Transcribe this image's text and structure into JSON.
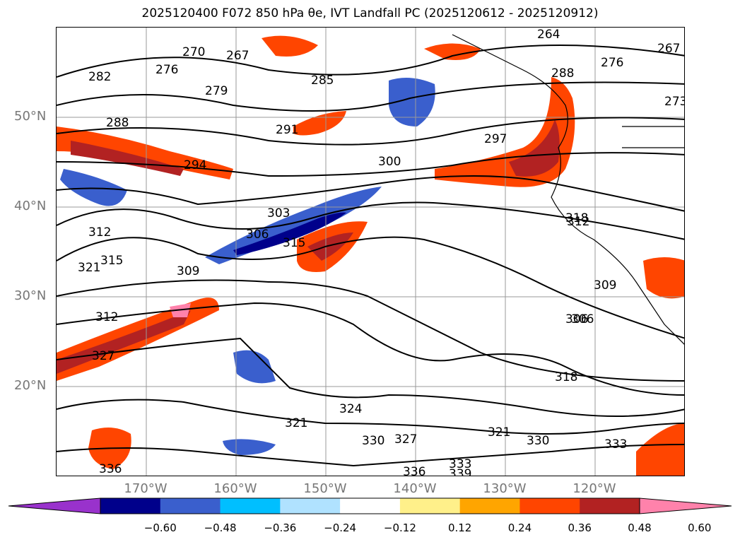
{
  "title": "2025120400 F072 850 hPa θe, IVT Landfall PC (2025120612 - 2025120912)",
  "axes": {
    "lat_labels": [
      "50°N",
      "40°N",
      "30°N",
      "20°N"
    ],
    "lon_labels": [
      "170°W",
      "160°W",
      "150°W",
      "140°W",
      "130°W",
      "120°W"
    ]
  },
  "contour_labels": [
    "270",
    "267",
    "276",
    "282",
    "279",
    "285",
    "288",
    "294",
    "291",
    "297",
    "300",
    "303",
    "306",
    "315",
    "312",
    "321",
    "315",
    "309",
    "312",
    "327",
    "318",
    "324",
    "321",
    "330",
    "327",
    "336",
    "333",
    "321",
    "330",
    "306",
    "309",
    "318",
    "333",
    "336",
    "339",
    "306",
    "312",
    "288",
    "276",
    "273",
    "264",
    "267"
  ],
  "colorbar": {
    "colors": [
      "#9932cc",
      "#00008b",
      "#3a5fcd",
      "#00bfff",
      "#b0e2ff",
      "#ffffff",
      "#fff08a",
      "#ffa500",
      "#ff4500",
      "#b22222",
      "#ff82ab"
    ],
    "tick_labels": [
      "−0.60",
      "−0.48",
      "−0.36",
      "−0.24",
      "−0.12",
      "0.12",
      "0.24",
      "0.36",
      "0.48",
      "0.60"
    ]
  }
}
